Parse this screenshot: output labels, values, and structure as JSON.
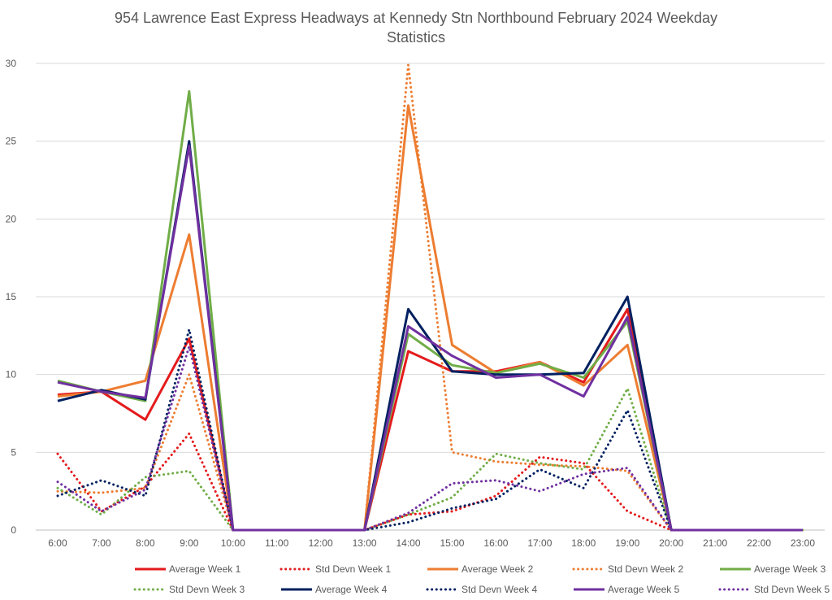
{
  "chart_data": {
    "type": "line",
    "title": "954 Lawrence East Express Headways at Kennedy Stn Northbound February 2024 Weekday Statistics",
    "categories": [
      "6:00",
      "7:00",
      "8:00",
      "9:00",
      "10:00",
      "11:00",
      "12:00",
      "13:00",
      "14:00",
      "15:00",
      "16:00",
      "17:00",
      "18:00",
      "19:00",
      "20:00",
      "21:00",
      "22:00",
      "23:00"
    ],
    "ylim": [
      0,
      30
    ],
    "yticks": [
      "0",
      "5",
      "10",
      "15",
      "20",
      "25",
      "30"
    ],
    "grid": true,
    "legend_position": "bottom",
    "series": [
      {
        "name": "Average Week 1",
        "color": "#e41a1c",
        "style": "solid",
        "values": [
          8.7,
          8.9,
          7.1,
          12.3,
          0,
          0,
          0,
          0,
          11.5,
          10.2,
          10.2,
          10.8,
          9.5,
          14.2,
          0,
          0,
          0,
          0
        ]
      },
      {
        "name": "Std Devn Week 1",
        "color": "#e41a1c",
        "style": "dotted",
        "values": [
          4.9,
          1.2,
          2.8,
          6.2,
          0,
          0,
          0,
          0,
          1.0,
          1.2,
          2.2,
          4.7,
          4.3,
          1.2,
          0,
          0,
          0,
          0
        ]
      },
      {
        "name": "Average Week 2",
        "color": "#ed7d31",
        "style": "solid",
        "values": [
          8.6,
          8.9,
          9.6,
          19.0,
          0,
          0,
          0,
          0,
          27.3,
          11.9,
          10.1,
          10.8,
          9.3,
          11.9,
          0,
          0,
          0,
          0
        ]
      },
      {
        "name": "Std Devn Week 2",
        "color": "#ed7d31",
        "style": "dotted",
        "values": [
          2.5,
          2.4,
          2.7,
          10.0,
          0,
          0,
          0,
          0,
          29.9,
          5.0,
          4.4,
          4.2,
          4.1,
          3.8,
          0,
          0,
          0,
          0
        ]
      },
      {
        "name": "Average Week 3",
        "color": "#70ad47",
        "style": "solid",
        "values": [
          9.6,
          8.9,
          8.3,
          28.2,
          0,
          0,
          0,
          0,
          12.6,
          10.6,
          10.1,
          10.7,
          9.8,
          13.4,
          0,
          0,
          0,
          0
        ]
      },
      {
        "name": "Std Devn Week 3",
        "color": "#70ad47",
        "style": "dotted",
        "values": [
          2.7,
          1.0,
          3.4,
          3.8,
          0,
          0,
          0,
          0,
          1.0,
          2.1,
          4.9,
          4.3,
          3.9,
          9.1,
          0,
          0,
          0,
          0
        ]
      },
      {
        "name": "Average Week 4",
        "color": "#002060",
        "style": "solid",
        "values": [
          8.3,
          9.0,
          8.4,
          25.0,
          0,
          0,
          0,
          0,
          14.2,
          10.2,
          10.0,
          10.0,
          10.1,
          15.0,
          0,
          0,
          0,
          0
        ]
      },
      {
        "name": "Std Devn Week 4",
        "color": "#002060",
        "style": "dotted",
        "values": [
          2.2,
          3.2,
          2.2,
          12.9,
          0,
          0,
          0,
          0,
          0.5,
          1.4,
          2.0,
          3.9,
          2.7,
          7.7,
          0,
          0,
          0,
          0
        ]
      },
      {
        "name": "Average Week 5",
        "color": "#7030a0",
        "style": "solid",
        "values": [
          9.5,
          8.9,
          8.5,
          24.7,
          0,
          0,
          0,
          0,
          13.1,
          11.2,
          9.8,
          10.0,
          8.6,
          13.7,
          0,
          0,
          0,
          0
        ]
      },
      {
        "name": "Std Devn Week 5",
        "color": "#7030a0",
        "style": "dotted",
        "values": [
          3.1,
          1.2,
          2.6,
          11.8,
          0,
          0,
          0,
          0,
          1.1,
          3.0,
          3.2,
          2.5,
          3.6,
          4.0,
          0,
          0,
          0,
          0
        ]
      }
    ]
  }
}
